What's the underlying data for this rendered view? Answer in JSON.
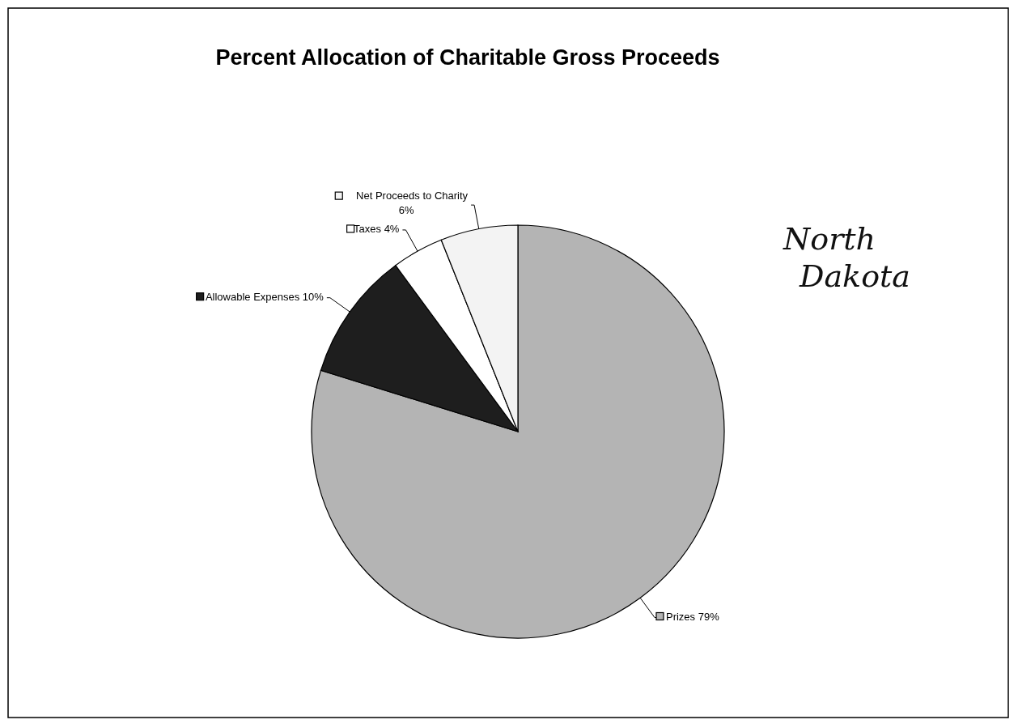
{
  "chart_data": {
    "type": "pie",
    "title": "Percent Allocation of Charitable Gross Proceeds",
    "categories": [
      "Prizes",
      "Allowable Expenses",
      "Taxes",
      "Net Proceeds to Charity"
    ],
    "values": [
      79,
      10,
      4,
      6
    ],
    "value_labels": [
      "79%",
      "10%",
      "4%",
      "6%"
    ],
    "colors": [
      "#b4b4b4",
      "#1e1e1e",
      "#ffffff",
      "#f3f3f3"
    ],
    "legend": "top left",
    "annotations": [
      "North Dakota"
    ]
  }
}
